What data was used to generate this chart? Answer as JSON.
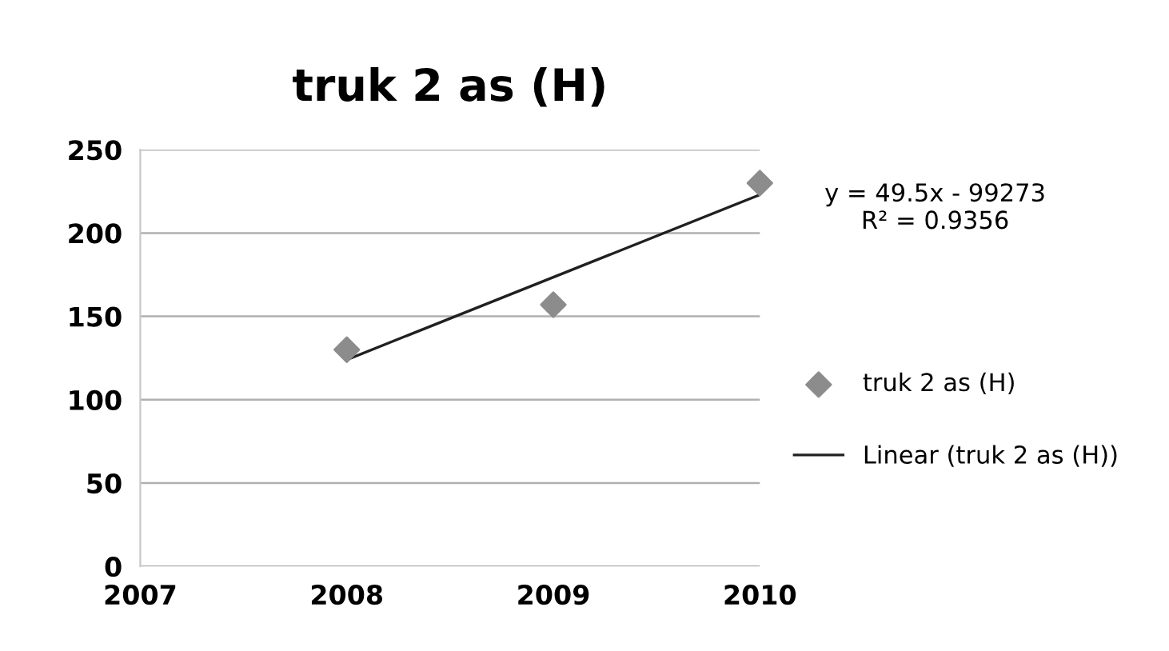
{
  "chart_data": {
    "type": "scatter",
    "title": "truk 2 as (H)",
    "series": [
      {
        "name": "truk 2 as (H)",
        "color": "#8c8c8c",
        "marker": "diamond",
        "x": [
          2008,
          2009,
          2010
        ],
        "values": [
          130,
          157,
          230
        ]
      },
      {
        "name": "Linear (truk 2 as (H))",
        "type": "line",
        "color": "#202020",
        "marker": "none",
        "line_style": "solid",
        "x": [
          2008,
          2010
        ],
        "values": [
          124,
          223
        ]
      }
    ],
    "annotations": [
      "y = 49.5x - 99273\nR² = 0.9356"
    ],
    "xlim": [
      2007,
      2010
    ],
    "xticks": [
      2007,
      2008,
      2009,
      2010
    ],
    "ylim": [
      0,
      250
    ],
    "yticks": [
      0,
      50,
      100,
      150,
      200,
      250
    ],
    "grid": "y",
    "legend": "right"
  }
}
